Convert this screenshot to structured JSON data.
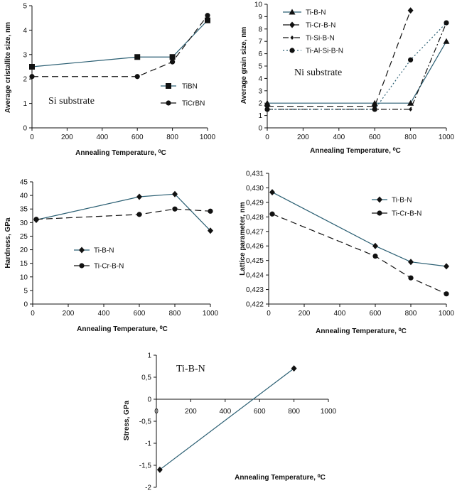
{
  "chart_data": [
    {
      "type": "line",
      "xlabel": "Annealing Temperature, ⁰C",
      "ylabel": "Average cristallite size, nm",
      "xlim": [
        0,
        1000
      ],
      "ylim": [
        0,
        5
      ],
      "xticks": [
        "0",
        "200",
        "400",
        "600",
        "800",
        "1000"
      ],
      "yticks": [
        "0",
        "1",
        "2",
        "3",
        "4",
        "5"
      ],
      "annotation": "Si substrate",
      "legend_position": "right",
      "series": [
        {
          "name": "TiBN",
          "marker": "square",
          "dash": "solid",
          "color": "#2b5f73",
          "x": [
            0,
            600,
            800,
            1000
          ],
          "y": [
            2.5,
            2.9,
            2.9,
            4.4
          ]
        },
        {
          "name": "TiCrBN",
          "marker": "circle",
          "dash": "long-dash",
          "color": "#111111",
          "x": [
            0,
            600,
            800,
            1000
          ],
          "y": [
            2.1,
            2.1,
            2.7,
            4.6
          ]
        }
      ]
    },
    {
      "type": "line",
      "xlabel": "Annealing Temperature, ⁰C",
      "ylabel": "Average grain size, nm",
      "xlim": [
        0,
        1000
      ],
      "ylim": [
        0,
        10
      ],
      "xticks": [
        "0",
        "200",
        "400",
        "600",
        "800",
        "1000"
      ],
      "yticks": [
        "0",
        "1",
        "2",
        "3",
        "4",
        "5",
        "6",
        "7",
        "8",
        "9",
        "10"
      ],
      "annotation": "Ni substrate",
      "legend_position": "top-left",
      "series": [
        {
          "name": "Ti-B-N",
          "marker": "triangle",
          "dash": "solid",
          "color": "#2b5f73",
          "x": [
            0,
            600,
            800,
            1000
          ],
          "y": [
            2.0,
            2.0,
            2.0,
            7.0
          ]
        },
        {
          "name": "Ti-Cr-B-N",
          "marker": "diamond",
          "dash": "long-dash",
          "color": "#111111",
          "x": [
            0,
            600,
            800
          ],
          "y": [
            1.75,
            1.75,
            9.5
          ]
        },
        {
          "name": "Ti-Si-B-N",
          "marker": "diamond-small",
          "dash": "dash-dot",
          "color": "#111111",
          "x": [
            0,
            600,
            800,
            1000
          ],
          "y": [
            1.5,
            1.5,
            1.5,
            8.5
          ]
        },
        {
          "name": "Ti-Al-Si-B-N",
          "marker": "circle",
          "dash": "dot",
          "color": "#2b5f73",
          "x": [
            0,
            600,
            800,
            1000
          ],
          "y": [
            1.5,
            1.5,
            5.5,
            8.5
          ]
        }
      ]
    },
    {
      "type": "line",
      "xlabel": "Annealing Temperature, ⁰C",
      "ylabel": "Hardness, GPa",
      "xlim": [
        0,
        1000
      ],
      "ylim": [
        0,
        45
      ],
      "xticks": [
        "0",
        "200",
        "400",
        "600",
        "800",
        "1000"
      ],
      "yticks": [
        "0",
        "5",
        "10",
        "15",
        "20",
        "25",
        "30",
        "35",
        "40",
        "45"
      ],
      "legend_position": "left",
      "series": [
        {
          "name": "Ti-B-N",
          "marker": "diamond",
          "dash": "solid",
          "color": "#2b5f73",
          "x": [
            20,
            600,
            800,
            1000
          ],
          "y": [
            31,
            39.5,
            40.5,
            27
          ]
        },
        {
          "name": "Ti-Cr-B-N",
          "marker": "circle",
          "dash": "long-dash",
          "color": "#111111",
          "x": [
            20,
            600,
            800,
            1000
          ],
          "y": [
            31.2,
            33,
            35,
            34.2
          ]
        }
      ]
    },
    {
      "type": "line",
      "xlabel": "Annealing Temperature, ⁰C",
      "ylabel": "Lattice parameter, nm",
      "xlim": [
        0,
        1000
      ],
      "ylim": [
        0.422,
        0.431
      ],
      "xticks": [
        "0",
        "200",
        "400",
        "600",
        "800",
        "1000"
      ],
      "yticks": [
        "0,422",
        "0,423",
        "0,424",
        "0,425",
        "0,426",
        "0,427",
        "0,428",
        "0,429",
        "0,430",
        "0,431"
      ],
      "legend_position": "top-right",
      "series": [
        {
          "name": "Ti-B-N",
          "marker": "diamond",
          "dash": "solid",
          "color": "#2b5f73",
          "x": [
            20,
            600,
            800,
            1000
          ],
          "y": [
            0.4297,
            0.426,
            0.4249,
            0.4246
          ]
        },
        {
          "name": "Ti-Cr-B-N",
          "marker": "circle",
          "dash": "long-dash",
          "color": "#111111",
          "x": [
            20,
            600,
            800,
            1000
          ],
          "y": [
            0.4282,
            0.4253,
            0.4238,
            0.4227
          ]
        }
      ]
    },
    {
      "type": "line",
      "xlabel": "Annealing Temperature, ⁰C",
      "ylabel": "Stress, GPa",
      "xlim": [
        0,
        1000
      ],
      "ylim": [
        -2,
        1
      ],
      "xticks": [
        "0",
        "200",
        "400",
        "600",
        "800",
        "1000"
      ],
      "yticks": [
        "-2",
        "-1,5",
        "-1",
        "-0,5",
        "0",
        "0,5",
        "1"
      ],
      "annotation": "Ti-B-N",
      "series": [
        {
          "name": "",
          "marker": "diamond",
          "dash": "solid",
          "color": "#2b5f73",
          "x": [
            20,
            800
          ],
          "y": [
            -1.6,
            0.7
          ]
        }
      ]
    }
  ]
}
